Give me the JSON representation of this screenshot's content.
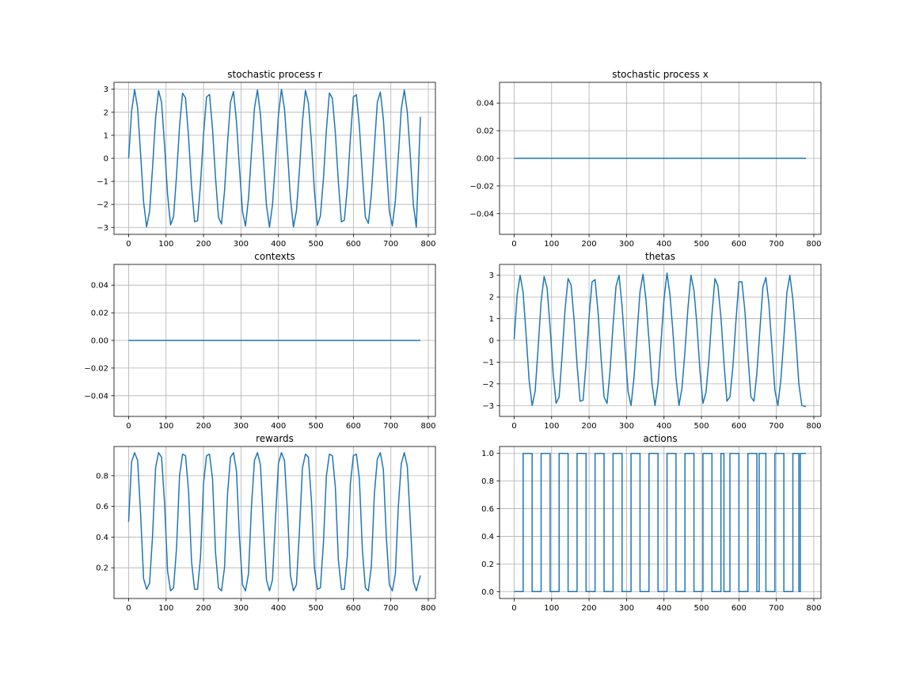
{
  "figure": {
    "background": "#ffffff",
    "line_color": "#1f77b4",
    "grid_color": "#b0b0b0"
  },
  "chart_data": [
    {
      "id": "r",
      "type": "line",
      "title": "stochastic process r",
      "xlabel": "",
      "ylabel": "",
      "xlim": [
        -39,
        819
      ],
      "ylim": [
        -3.3,
        3.3
      ],
      "xticks": [
        0,
        100,
        200,
        300,
        400,
        500,
        600,
        700,
        800
      ],
      "xtick_labels": [
        "0",
        "100",
        "200",
        "300",
        "400",
        "500",
        "600",
        "700",
        "800"
      ],
      "yticks": [
        -3,
        -2,
        -1,
        0,
        1,
        2,
        3
      ],
      "ytick_labels": [
        "−3",
        "−2",
        "−1",
        "0",
        "1",
        "2",
        "3"
      ],
      "grid": true,
      "series": [
        {
          "x": [
            0,
            8,
            16,
            24,
            32,
            40,
            48,
            56,
            64,
            72,
            80,
            88,
            96,
            104,
            112,
            120,
            128,
            136,
            144,
            152,
            160,
            168,
            176,
            184,
            192,
            200,
            208,
            216,
            224,
            232,
            240,
            248,
            256,
            264,
            272,
            280,
            288,
            296,
            304,
            312,
            320,
            328,
            336,
            344,
            352,
            360,
            368,
            376,
            384,
            392,
            400,
            408,
            416,
            424,
            432,
            440,
            448,
            456,
            464,
            472,
            480,
            488,
            496,
            504,
            512,
            520,
            528,
            536,
            544,
            552,
            560,
            568,
            576,
            584,
            592,
            600,
            608,
            616,
            624,
            632,
            640,
            648,
            656,
            664,
            672,
            680,
            688,
            696,
            704,
            712,
            720,
            728,
            736,
            744,
            752,
            760,
            768,
            779
          ],
          "y": [
            0.0,
            2.05,
            2.99,
            2.19,
            0.19,
            -1.89,
            -2.98,
            -2.31,
            -0.38,
            1.74,
            2.94,
            2.42,
            0.56,
            -1.57,
            -2.89,
            -2.53,
            -0.74,
            1.4,
            2.83,
            2.62,
            0.92,
            -1.21,
            -2.75,
            -2.71,
            -1.1,
            1.03,
            2.66,
            2.78,
            1.27,
            -0.84,
            -2.56,
            -2.85,
            -1.43,
            0.65,
            2.44,
            2.9,
            1.59,
            -0.46,
            -2.31,
            -2.94,
            -1.75,
            0.26,
            2.18,
            2.98,
            1.89,
            -0.06,
            -2.04,
            -2.99,
            -2.03,
            -0.13,
            1.89,
            3.0,
            2.16,
            0.33,
            -1.74,
            -2.98,
            -2.28,
            -0.53,
            1.58,
            2.95,
            2.4,
            0.71,
            -1.41,
            -2.91,
            -2.5,
            -0.9,
            1.23,
            2.84,
            2.6,
            1.07,
            -1.05,
            -2.76,
            -2.68,
            -1.24,
            0.87,
            2.67,
            2.76,
            1.4,
            -0.68,
            -2.56,
            -2.82,
            -1.56,
            0.48,
            2.44,
            2.88,
            1.71,
            -0.29,
            -2.3,
            -2.93,
            -1.86,
            0.09,
            2.16,
            2.97,
            2.0,
            0.11,
            -2.0,
            -2.99,
            1.8
          ]
        }
      ]
    },
    {
      "id": "x",
      "type": "line",
      "title": "stochastic process x",
      "xlabel": "",
      "ylabel": "",
      "xlim": [
        -39,
        819
      ],
      "ylim": [
        -0.055,
        0.055
      ],
      "xticks": [
        0,
        100,
        200,
        300,
        400,
        500,
        600,
        700,
        800
      ],
      "xtick_labels": [
        "0",
        "100",
        "200",
        "300",
        "400",
        "500",
        "600",
        "700",
        "800"
      ],
      "yticks": [
        -0.04,
        -0.02,
        0.0,
        0.02,
        0.04
      ],
      "ytick_labels": [
        "−0.04",
        "−0.02",
        "0.00",
        "0.02",
        "0.04"
      ],
      "grid": true,
      "series": [
        {
          "x": [
            0,
            779
          ],
          "y": [
            0,
            0
          ]
        }
      ]
    },
    {
      "id": "contexts",
      "type": "line",
      "title": "contexts",
      "xlabel": "",
      "ylabel": "",
      "xlim": [
        -39,
        819
      ],
      "ylim": [
        -0.055,
        0.055
      ],
      "xticks": [
        0,
        100,
        200,
        300,
        400,
        500,
        600,
        700,
        800
      ],
      "xtick_labels": [
        "0",
        "100",
        "200",
        "300",
        "400",
        "500",
        "600",
        "700",
        "800"
      ],
      "yticks": [
        -0.04,
        -0.02,
        0.0,
        0.02,
        0.04
      ],
      "ytick_labels": [
        "−0.04",
        "−0.02",
        "0.00",
        "0.02",
        "0.04"
      ],
      "grid": true,
      "series": [
        {
          "x": [
            0,
            779
          ],
          "y": [
            0,
            0
          ]
        }
      ]
    },
    {
      "id": "thetas",
      "type": "line",
      "title": "thetas",
      "xlabel": "",
      "ylabel": "",
      "xlim": [
        -39,
        819
      ],
      "ylim": [
        -3.5,
        3.5
      ],
      "xticks": [
        0,
        100,
        200,
        300,
        400,
        500,
        600,
        700,
        800
      ],
      "xtick_labels": [
        "0",
        "100",
        "200",
        "300",
        "400",
        "500",
        "600",
        "700",
        "800"
      ],
      "yticks": [
        -3,
        -2,
        -1,
        0,
        1,
        2,
        3
      ],
      "ytick_labels": [
        "−3",
        "−2",
        "−1",
        "0",
        "1",
        "2",
        "3"
      ],
      "grid": true,
      "series": [
        {
          "x": [
            0,
            8,
            16,
            24,
            32,
            40,
            48,
            56,
            64,
            72,
            80,
            88,
            96,
            104,
            112,
            120,
            128,
            136,
            144,
            152,
            160,
            168,
            176,
            184,
            192,
            200,
            208,
            216,
            224,
            232,
            240,
            248,
            256,
            264,
            272,
            280,
            288,
            296,
            304,
            312,
            320,
            328,
            336,
            344,
            352,
            360,
            368,
            376,
            384,
            392,
            400,
            408,
            416,
            424,
            432,
            440,
            448,
            456,
            464,
            472,
            480,
            488,
            496,
            504,
            512,
            520,
            528,
            536,
            544,
            552,
            560,
            568,
            576,
            584,
            592,
            600,
            608,
            616,
            624,
            632,
            640,
            648,
            656,
            664,
            672,
            680,
            688,
            696,
            704,
            712,
            720,
            728,
            736,
            744,
            752,
            760,
            768,
            779
          ],
          "y": [
            0.05,
            2.1,
            3.0,
            2.2,
            0.25,
            -1.85,
            -3.0,
            -2.35,
            -0.35,
            1.8,
            2.95,
            2.4,
            0.6,
            -1.5,
            -2.9,
            -2.6,
            -0.7,
            1.45,
            2.85,
            2.55,
            0.95,
            -1.15,
            -2.8,
            -2.75,
            -1.05,
            1.1,
            2.7,
            2.8,
            1.3,
            -0.8,
            -2.6,
            -2.9,
            -1.4,
            0.7,
            2.5,
            3.0,
            1.6,
            -0.4,
            -2.35,
            -3.0,
            -1.7,
            0.3,
            2.25,
            3.05,
            1.85,
            0.0,
            -2.0,
            -3.0,
            -2.0,
            -0.1,
            1.9,
            3.1,
            2.1,
            0.35,
            -1.7,
            -3.0,
            -2.2,
            -0.5,
            1.5,
            3.0,
            2.3,
            0.7,
            -1.4,
            -2.9,
            -2.4,
            -0.85,
            1.2,
            2.85,
            2.5,
            1.05,
            -1.0,
            -2.8,
            -2.6,
            -1.2,
            0.9,
            2.7,
            2.7,
            1.35,
            -0.7,
            -2.6,
            -2.8,
            -1.5,
            0.5,
            2.45,
            2.9,
            1.7,
            -0.3,
            -2.3,
            -3.0,
            -1.8,
            0.1,
            2.2,
            3.0,
            1.9,
            0.1,
            -2.0,
            -3.0,
            -3.05
          ]
        }
      ]
    },
    {
      "id": "rewards",
      "type": "line",
      "title": "rewards",
      "xlabel": "",
      "ylabel": "",
      "xlim": [
        -39,
        819
      ],
      "ylim": [
        0.0,
        0.99
      ],
      "xticks": [
        0,
        100,
        200,
        300,
        400,
        500,
        600,
        700,
        800
      ],
      "xtick_labels": [
        "0",
        "100",
        "200",
        "300",
        "400",
        "500",
        "600",
        "700",
        "800"
      ],
      "yticks": [
        0.2,
        0.4,
        0.6,
        0.8
      ],
      "ytick_labels": [
        "0.2",
        "0.4",
        "0.6",
        "0.8"
      ],
      "grid": true,
      "series": [
        {
          "x": [
            0,
            8,
            16,
            24,
            32,
            40,
            48,
            56,
            64,
            72,
            80,
            88,
            96,
            104,
            112,
            120,
            128,
            136,
            144,
            152,
            160,
            168,
            176,
            184,
            192,
            200,
            208,
            216,
            224,
            232,
            240,
            248,
            256,
            264,
            272,
            280,
            288,
            296,
            304,
            312,
            320,
            328,
            336,
            344,
            352,
            360,
            368,
            376,
            384,
            392,
            400,
            408,
            416,
            424,
            432,
            440,
            448,
            456,
            464,
            472,
            480,
            488,
            496,
            504,
            512,
            520,
            528,
            536,
            544,
            552,
            560,
            568,
            576,
            584,
            592,
            600,
            608,
            616,
            624,
            632,
            640,
            648,
            656,
            664,
            672,
            680,
            688,
            696,
            704,
            712,
            720,
            728,
            736,
            744,
            752,
            760,
            768,
            779
          ],
          "y": [
            0.5,
            0.89,
            0.95,
            0.9,
            0.55,
            0.13,
            0.06,
            0.1,
            0.41,
            0.85,
            0.95,
            0.92,
            0.62,
            0.18,
            0.05,
            0.07,
            0.33,
            0.8,
            0.94,
            0.93,
            0.7,
            0.24,
            0.06,
            0.06,
            0.27,
            0.75,
            0.93,
            0.94,
            0.78,
            0.3,
            0.07,
            0.05,
            0.2,
            0.68,
            0.92,
            0.95,
            0.83,
            0.39,
            0.09,
            0.05,
            0.16,
            0.6,
            0.9,
            0.95,
            0.87,
            0.48,
            0.12,
            0.05,
            0.12,
            0.52,
            0.88,
            0.95,
            0.9,
            0.57,
            0.15,
            0.05,
            0.09,
            0.44,
            0.85,
            0.94,
            0.92,
            0.64,
            0.2,
            0.06,
            0.07,
            0.36,
            0.8,
            0.94,
            0.93,
            0.72,
            0.25,
            0.06,
            0.06,
            0.28,
            0.75,
            0.93,
            0.94,
            0.78,
            0.32,
            0.07,
            0.05,
            0.21,
            0.68,
            0.91,
            0.95,
            0.84,
            0.4,
            0.09,
            0.05,
            0.16,
            0.6,
            0.88,
            0.95,
            0.86,
            0.5,
            0.11,
            0.05,
            0.15
          ]
        }
      ]
    },
    {
      "id": "actions",
      "type": "line",
      "title": "actions",
      "xlabel": "",
      "ylabel": "",
      "xlim": [
        -39,
        819
      ],
      "ylim": [
        -0.05,
        1.05
      ],
      "xticks": [
        0,
        100,
        200,
        300,
        400,
        500,
        600,
        700,
        800
      ],
      "xtick_labels": [
        "0",
        "100",
        "200",
        "300",
        "400",
        "500",
        "600",
        "700",
        "800"
      ],
      "yticks": [
        0.0,
        0.2,
        0.4,
        0.6,
        0.8,
        1.0
      ],
      "ytick_labels": [
        "0.0",
        "0.2",
        "0.4",
        "0.6",
        "0.8",
        "1.0"
      ],
      "grid": true,
      "step": true,
      "series": [
        {
          "x": [
            0,
            24,
            48,
            72,
            96,
            120,
            144,
            168,
            192,
            216,
            240,
            264,
            288,
            312,
            336,
            360,
            384,
            408,
            432,
            456,
            480,
            504,
            528,
            552,
            560,
            576,
            600,
            624,
            648,
            654,
            672,
            696,
            720,
            744,
            760,
            764,
            779
          ],
          "y": [
            0,
            1,
            0,
            1,
            0,
            1,
            0,
            1,
            0,
            1,
            0,
            1,
            0,
            1,
            0,
            1,
            0,
            1,
            0,
            1,
            0,
            1,
            0,
            1,
            0,
            1,
            0,
            1,
            0,
            1,
            0,
            1,
            0,
            1,
            0,
            1,
            1
          ]
        }
      ]
    }
  ]
}
